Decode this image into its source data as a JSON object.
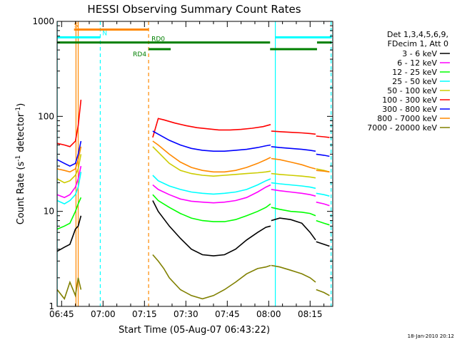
{
  "chart_data": {
    "type": "line",
    "title": "HESSI Observing Summary Count Rates",
    "xlabel": "Start Time (05-Aug-07 06:43:22)",
    "ylabel": "Count Rate (s-1 detector-1)",
    "ylabel_parts": {
      "base": "Count Rate (s",
      "exp1": "-1",
      "mid": " detector",
      "exp2": "-1",
      "end": ")"
    },
    "x_ticks": [
      "06:45",
      "07:00",
      "07:15",
      "07:30",
      "07:45",
      "08:00",
      "08:15"
    ],
    "x_tick_minutes": [
      45,
      60,
      75,
      90,
      105,
      120,
      135
    ],
    "xlim_minutes": [
      43.37,
      143.2
    ],
    "y_scale": "log",
    "ylim": [
      1,
      1000
    ],
    "y_ticks": [
      "1",
      "10",
      "100",
      "1000"
    ],
    "y_tick_values": [
      1,
      10,
      100,
      1000
    ],
    "legend_header": [
      "Det 1,3,4,5,6,9,",
      "FDecim 1, Att 0"
    ],
    "legend_placement": "right",
    "timestamp": "18-Jan-2010 20:12",
    "series": [
      {
        "name": "3 - 6 keV",
        "color": "#000000",
        "segments": [
          {
            "x": [
              43.4,
              46,
              48,
              50,
              51,
              52
            ],
            "y": [
              3.8,
              4.2,
              4.5,
              6.5,
              7,
              9
            ]
          },
          {
            "x": [
              78,
              80,
              84,
              88,
              92,
              96,
              100,
              104,
              108,
              112,
              116,
              119,
              120.7
            ],
            "y": [
              13,
              10,
              7,
              5.2,
              4,
              3.5,
              3.4,
              3.5,
              4,
              5,
              6,
              6.8,
              7
            ]
          },
          {
            "x": [
              120.9,
              124,
              128,
              132,
              135,
              137
            ],
            "y": [
              8,
              8.5,
              8.2,
              7.5,
              6,
              5
            ]
          },
          {
            "x": [
              137.2,
              140,
              142
            ],
            "y": [
              4.8,
              4.5,
              4.3
            ]
          }
        ]
      },
      {
        "name": "6 - 12 keV",
        "color": "#ff00ff",
        "segments": [
          {
            "x": [
              43.4,
              46,
              48,
              50,
              51,
              52
            ],
            "y": [
              15,
              14,
              15,
              18,
              22,
              30
            ]
          },
          {
            "x": [
              78,
              80,
              84,
              88,
              92,
              96,
              100,
              104,
              108,
              112,
              116,
              119,
              120.7
            ],
            "y": [
              19,
              17,
              15,
              13.5,
              12.8,
              12.5,
              12.3,
              12.5,
              13,
              14,
              16,
              18,
              19
            ]
          },
          {
            "x": [
              120.9,
              124,
              128,
              132,
              135,
              137
            ],
            "y": [
              17,
              16.5,
              16,
              15.5,
              15,
              14.5
            ]
          },
          {
            "x": [
              137.2,
              140,
              142
            ],
            "y": [
              12.5,
              12,
              11.5
            ]
          }
        ]
      },
      {
        "name": "12 - 25 keV",
        "color": "#00ff00",
        "segments": [
          {
            "x": [
              43.4,
              46,
              48,
              50,
              51,
              52
            ],
            "y": [
              6.5,
              7,
              7.5,
              10,
              12,
              14
            ]
          },
          {
            "x": [
              78,
              80,
              84,
              88,
              92,
              96,
              100,
              104,
              108,
              112,
              116,
              119,
              120.7
            ],
            "y": [
              15,
              13,
              11,
              9.5,
              8.5,
              8,
              7.8,
              7.8,
              8.2,
              9,
              10,
              11,
              12
            ]
          },
          {
            "x": [
              120.9,
              124,
              128,
              132,
              135,
              137
            ],
            "y": [
              11,
              10.5,
              10,
              9.8,
              9.5,
              9
            ]
          },
          {
            "x": [
              137.2,
              140,
              142
            ],
            "y": [
              8,
              7.5,
              7.2
            ]
          }
        ]
      },
      {
        "name": "25 - 50 keV",
        "color": "#00ffff",
        "segments": [
          {
            "x": [
              43.4,
              46,
              48,
              50,
              51,
              52
            ],
            "y": [
              13,
              12,
              13,
              15,
              18,
              26
            ]
          },
          {
            "x": [
              78,
              80,
              84,
              88,
              92,
              96,
              100,
              104,
              108,
              112,
              116,
              119,
              120.7
            ],
            "y": [
              24,
              21,
              18.5,
              17,
              16,
              15.5,
              15.2,
              15.5,
              16,
              17,
              19,
              21,
              22
            ]
          },
          {
            "x": [
              120.9,
              124,
              128,
              132,
              135,
              137
            ],
            "y": [
              20,
              19.5,
              19,
              18.5,
              18,
              17.5
            ]
          },
          {
            "x": [
              137.2,
              140,
              142
            ],
            "y": [
              15.5,
              15,
              14.5
            ]
          }
        ]
      },
      {
        "name": "50 - 100 keV",
        "color": "#cccc00",
        "segments": [
          {
            "x": [
              43.4,
              46,
              48,
              50,
              51,
              52
            ],
            "y": [
              22,
              20,
              21,
              24,
              28,
              40
            ]
          },
          {
            "x": [
              78,
              80,
              84,
              88,
              92,
              96,
              100,
              104,
              108,
              112,
              116,
              119,
              120.7
            ],
            "y": [
              48,
              42,
              32,
              27,
              25,
              24,
              23.5,
              24,
              24.5,
              25,
              25.5,
              26,
              26.5
            ]
          },
          {
            "x": [
              120.9,
              124,
              128,
              132,
              135,
              137
            ],
            "y": [
              25,
              24.5,
              24,
              23.5,
              23,
              22.5
            ]
          },
          {
            "x": [
              137.2,
              140,
              142
            ],
            "y": [
              28,
              27,
              26
            ]
          }
        ]
      },
      {
        "name": "100 - 300 keV",
        "color": "#ff0000",
        "segments": [
          {
            "x": [
              43.4,
              46,
              48,
              50,
              51,
              52
            ],
            "y": [
              52,
              50,
              48,
              55,
              80,
              150
            ]
          },
          {
            "x": [
              78,
              80,
              82,
              86,
              90,
              94,
              98,
              102,
              106,
              110,
              114,
              118,
              120.7
            ],
            "y": [
              60,
              95,
              92,
              85,
              80,
              76,
              74,
              72,
              72,
              73,
              75,
              78,
              82
            ]
          },
          {
            "x": [
              120.9,
              124,
              128,
              132,
              135,
              137
            ],
            "y": [
              70,
              69,
              68,
              67,
              66,
              65
            ]
          },
          {
            "x": [
              137.2,
              140,
              142
            ],
            "y": [
              62,
              61,
              60
            ]
          }
        ]
      },
      {
        "name": "300 - 800 keV",
        "color": "#0000ff",
        "segments": [
          {
            "x": [
              43.4,
              46,
              48,
              50,
              51,
              52
            ],
            "y": [
              35,
              32,
              30,
              32,
              40,
              55
            ]
          },
          {
            "x": [
              78,
              80,
              84,
              88,
              92,
              96,
              100,
              104,
              108,
              112,
              116,
              119,
              120.7
            ],
            "y": [
              70,
              65,
              56,
              50,
              46,
              44,
              43,
              43,
              44,
              45,
              47,
              49,
              50
            ]
          },
          {
            "x": [
              120.9,
              124,
              128,
              132,
              135,
              137
            ],
            "y": [
              48,
              47,
              46,
              45,
              44,
              43
            ]
          },
          {
            "x": [
              137.2,
              140,
              142
            ],
            "y": [
              40,
              39,
              38
            ]
          }
        ]
      },
      {
        "name": "800 - 7000 keV",
        "color": "#ff8800",
        "segments": [
          {
            "x": [
              43.4,
              46,
              48,
              50,
              51,
              52
            ],
            "y": [
              28,
              27,
              26,
              28,
              35,
              48
            ]
          },
          {
            "x": [
              78,
              80,
              84,
              88,
              92,
              96,
              100,
              104,
              108,
              112,
              116,
              119,
              120.7
            ],
            "y": [
              55,
              50,
              40,
              33,
              29,
              27,
              26,
              26,
              27,
              29,
              32,
              35,
              37
            ]
          },
          {
            "x": [
              120.9,
              124,
              128,
              132,
              135,
              137
            ],
            "y": [
              36,
              35,
              33,
              31,
              29,
              28
            ]
          },
          {
            "x": [
              137.2,
              140,
              142
            ],
            "y": [
              27,
              26.5,
              26
            ]
          }
        ]
      },
      {
        "name": "7000 - 20000 keV",
        "color": "#808000",
        "segments": [
          {
            "x": [
              43.4,
              46,
              48,
              50,
              51,
              52
            ],
            "y": [
              1.5,
              1.2,
              1.8,
              1.3,
              2,
              1.5
            ]
          },
          {
            "x": [
              78,
              80,
              82,
              84,
              88,
              92,
              96,
              100,
              104,
              108,
              112,
              116,
              119,
              120.7
            ],
            "y": [
              3.5,
              3,
              2.5,
              2,
              1.5,
              1.3,
              1.2,
              1.3,
              1.5,
              1.8,
              2.2,
              2.5,
              2.6,
              2.7
            ]
          },
          {
            "x": [
              120.9,
              124,
              128,
              132,
              135,
              137
            ],
            "y": [
              2.7,
              2.6,
              2.4,
              2.2,
              2,
              1.8
            ]
          },
          {
            "x": [
              137.2,
              140,
              142
            ],
            "y": [
              1.5,
              1.4,
              1.3
            ]
          }
        ]
      }
    ],
    "state_bars": [
      {
        "label": "S",
        "color": "#ff8800",
        "level": 820,
        "segments": [
          [
            49.5,
            76.5
          ]
        ]
      },
      {
        "label": "N",
        "color": "#00ffff",
        "level": 680,
        "segments": [
          [
            43.4,
            59
          ],
          [
            122.4,
            142.8
          ]
        ]
      },
      {
        "label": "RD0",
        "color": "#008000",
        "level": 600,
        "segments": [
          [
            43.4,
            120.5
          ],
          [
            137.5,
            142.8
          ]
        ]
      },
      {
        "label": "RD4",
        "color": "#008000",
        "level": 510,
        "segments": [
          [
            76.5,
            84.5
          ],
          [
            120.5,
            137.5
          ]
        ]
      }
    ],
    "vertical_markers": [
      {
        "x": 43.4,
        "color": "#00ffff",
        "style": "solid"
      },
      {
        "x": 50.2,
        "color": "#ff8800",
        "style": "solid"
      },
      {
        "x": 51,
        "color": "#ff8800",
        "style": "solid"
      },
      {
        "x": 59,
        "color": "#00ffff",
        "style": "dashed"
      },
      {
        "x": 76.5,
        "color": "#ff8800",
        "style": "dashed"
      },
      {
        "x": 122.4,
        "color": "#00ffff",
        "style": "solid"
      },
      {
        "x": 142.6,
        "color": "#00ffff",
        "style": "dashed"
      }
    ]
  }
}
